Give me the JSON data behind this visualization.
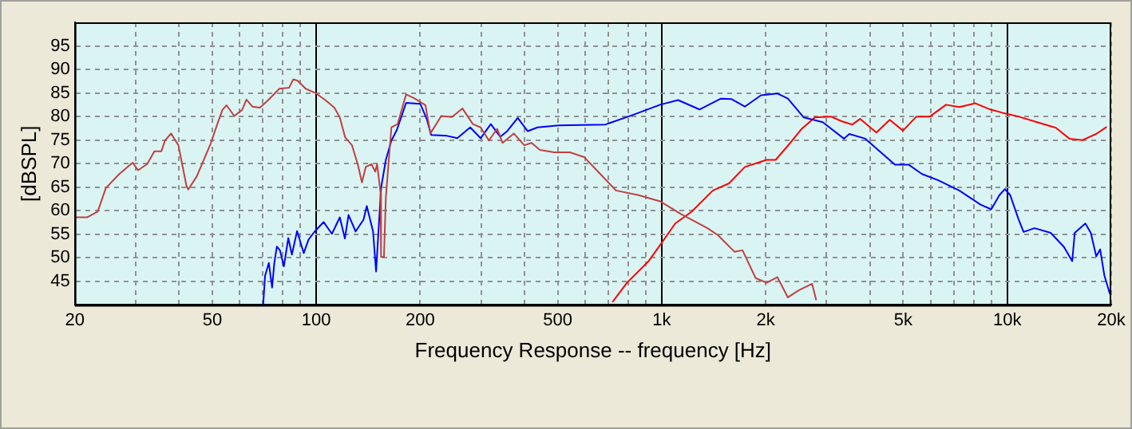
{
  "chart_data": {
    "type": "line",
    "xlabel": "Frequency Response -- frequency [Hz]",
    "ylabel": "[dBSPL]",
    "log": "x",
    "grid": true,
    "legend": false,
    "marker": "none",
    "line_style": "solid",
    "xlim": [
      20,
      20000
    ],
    "ylim": [
      40,
      100
    ],
    "xticks": [
      20,
      {
        "value": 30,
        "label": null
      },
      {
        "value": 40,
        "label": null
      },
      50,
      {
        "value": 60,
        "label": null
      },
      {
        "value": 70,
        "label": null
      },
      {
        "value": 80,
        "label": null
      },
      {
        "value": 90,
        "label": null
      },
      100,
      200,
      {
        "value": 300,
        "label": null
      },
      {
        "value": 400,
        "label": null
      },
      500,
      {
        "value": 600,
        "label": null
      },
      {
        "value": 700,
        "label": null
      },
      {
        "value": 800,
        "label": null
      },
      {
        "value": 900,
        "label": null
      },
      {
        "value": 1000,
        "label": "1k"
      },
      {
        "value": 2000,
        "label": "2k"
      },
      {
        "value": 3000,
        "label": null
      },
      {
        "value": 4000,
        "label": null
      },
      {
        "value": 5000,
        "label": "5k"
      },
      {
        "value": 6000,
        "label": null
      },
      {
        "value": 7000,
        "label": null
      },
      {
        "value": 8000,
        "label": null
      },
      {
        "value": 9000,
        "label": null
      },
      {
        "value": 10000,
        "label": "10k"
      },
      {
        "value": 20000,
        "label": "20k"
      }
    ],
    "yticks": [
      45,
      50,
      55,
      60,
      65,
      70,
      75,
      80,
      85,
      90,
      95
    ],
    "series": [
      {
        "color": "#c04040",
        "x": [
          20,
          21.7,
          23.3,
          24.6,
          26.9,
          29.4,
          30.5,
          32.4,
          34,
          35.6,
          36.5,
          38,
          39.9,
          42.1,
          42.6,
          45.1,
          49.5,
          52,
          53.5,
          55,
          57.9,
          61,
          62.8,
          65.3,
          68.7,
          72.4,
          78.2,
          83.4,
          85.8,
          88.3,
          93.2,
          100,
          106.6,
          112.8,
          116.9,
          121.2,
          126.9,
          131.8,
          135.6,
          139.1,
          144.4,
          148.2,
          150,
          153.5,
          154,
          157,
          159,
          165,
          172,
          182,
          192,
          207,
          214,
          230,
          247,
          265,
          284,
          299,
          316,
          334,
          346,
          373,
          400,
          420,
          444,
          488,
          542,
          596,
          664,
          737,
          857,
          989,
          1136,
          1356,
          1455,
          1623,
          1713,
          1870,
          2012,
          2160,
          2318,
          2490,
          2723,
          2800
        ],
        "values": [
          58.6,
          58.6,
          59.8,
          64.8,
          67.8,
          70.2,
          68.6,
          69.9,
          72.6,
          72.6,
          74.9,
          76.4,
          73.9,
          65.3,
          64.5,
          67.3,
          74.3,
          78.9,
          81.4,
          82.4,
          80.1,
          81.4,
          83.6,
          82.1,
          81.9,
          83.4,
          85.9,
          86.1,
          87.9,
          87.6,
          85.9,
          84.9,
          83.4,
          81.9,
          79.9,
          75.6,
          73.9,
          69.9,
          66,
          69.3,
          69.9,
          68.3,
          69.9,
          63.8,
          50.2,
          50.2,
          62.8,
          77.7,
          78.4,
          84.7,
          83.9,
          82.4,
          76.4,
          80.1,
          79.9,
          81.7,
          78.4,
          77.7,
          74.9,
          77.4,
          74.4,
          76.4,
          73.9,
          74.4,
          72.9,
          72.4,
          72.4,
          71.4,
          67.8,
          64.3,
          63.3,
          62,
          59.3,
          56.3,
          54.8,
          51.3,
          51.6,
          45.7,
          44.7,
          45.9,
          41.6,
          43.1,
          44.5,
          41
        ]
      },
      {
        "color": "#0000ff",
        "x": [
          70.2,
          71.1,
          72.9,
          74.5,
          75.6,
          76.9,
          78.5,
          80.6,
          83,
          85,
          88,
          92,
          95,
          99,
          105,
          111,
          117,
          121,
          124,
          130,
          137,
          140,
          146,
          149,
          154,
          159,
          165,
          171,
          182,
          200,
          209,
          215,
          239,
          256,
          279,
          299,
          320,
          341,
          357,
          383,
          409,
          437,
          503,
          687,
          822,
          989,
          1115,
          1286,
          1483,
          1593,
          1740,
          1937,
          2160,
          2318,
          2577,
          2925,
          3368,
          3490,
          3883,
          4247,
          4731,
          5179,
          5666,
          6300,
          7260,
          8370,
          8990,
          9490,
          9840,
          10200,
          10770,
          11150,
          12000,
          13360,
          14600,
          15420,
          15680,
          16830,
          17450,
          18100,
          18570,
          19100,
          19820
        ],
        "values": [
          40.1,
          46.2,
          48.9,
          43.7,
          48.9,
          52.4,
          51.6,
          48.2,
          54.2,
          50.7,
          55.7,
          51,
          53.9,
          55.6,
          57.6,
          55.1,
          58.6,
          54.1,
          59.1,
          55.6,
          58.1,
          61,
          55.6,
          47.1,
          64.8,
          70.8,
          74.9,
          77.1,
          82.9,
          82.7,
          79.4,
          76.1,
          75.9,
          75.4,
          77.7,
          75.4,
          78.4,
          75.7,
          76.9,
          79.7,
          76.9,
          77.7,
          78.1,
          78.3,
          80.3,
          82.5,
          83.5,
          81.5,
          83.8,
          83.7,
          82.1,
          84.5,
          84.9,
          83.8,
          79.8,
          78.8,
          75.3,
          76.3,
          75.3,
          72.8,
          69.8,
          69.8,
          67.8,
          66.5,
          64.3,
          61.3,
          60.3,
          63.3,
          64.6,
          63.3,
          58.3,
          55.5,
          56.3,
          55.3,
          52.3,
          49.3,
          55.3,
          57.3,
          55.3,
          50.3,
          51.8,
          46.3,
          42.3
        ]
      },
      {
        "color": "#ff0000",
        "x": [
          720,
          793,
          914,
          989,
          1094,
          1220,
          1406,
          1565,
          1740,
          2010,
          2136,
          2318,
          2535,
          2774,
          3084,
          3314,
          3560,
          3750,
          4180,
          4570,
          4990,
          5460,
          5970,
          6650,
          7270,
          8090,
          8850,
          9680,
          10770,
          12200,
          13830,
          15130,
          16530,
          18080,
          19410
        ],
        "values": [
          40.6,
          44.7,
          49.2,
          52.7,
          57.3,
          59.8,
          64.3,
          65.8,
          69.3,
          70.8,
          70.8,
          73.8,
          77.3,
          79.8,
          80,
          79,
          78.3,
          79.5,
          76.6,
          79.3,
          77,
          80,
          80,
          82.5,
          82,
          82.8,
          81.6,
          80.8,
          80,
          78.8,
          77.6,
          75.3,
          75,
          76.3,
          77.8
        ]
      }
    ]
  }
}
